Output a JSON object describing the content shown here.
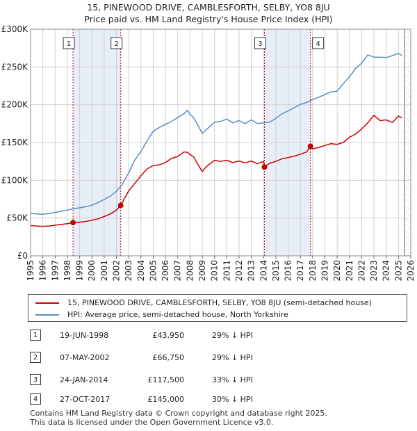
{
  "title": {
    "line1": "15, PINEWOOD DRIVE, CAMBLESFORTH, SELBY, YO8 8JU",
    "line2": "Price paid vs. HM Land Registry's House Price Index (HPI)"
  },
  "colors": {
    "property": "#cc0000",
    "hpi": "#5b8ec9",
    "shade": "#e8eef8",
    "grid": "#d0d0d0",
    "marker_line": "#cc0000"
  },
  "chart_data": {
    "type": "line",
    "title": "Price paid vs. HM Land Registry's House Price Index (HPI)",
    "xlabel": "",
    "ylabel": "",
    "xlim": [
      1995,
      2026
    ],
    "ylim": [
      0,
      300000
    ],
    "y_ticks": [
      {
        "value": 0,
        "label": "£0"
      },
      {
        "value": 50000,
        "label": "£50K"
      },
      {
        "value": 100000,
        "label": "£100K"
      },
      {
        "value": 150000,
        "label": "£150K"
      },
      {
        "value": 200000,
        "label": "£200K"
      },
      {
        "value": 250000,
        "label": "£250K"
      },
      {
        "value": 300000,
        "label": "£300K"
      }
    ],
    "x_ticks": [
      "1995",
      "1996",
      "1997",
      "1998",
      "1999",
      "2000",
      "2001",
      "2002",
      "2003",
      "2004",
      "2005",
      "2006",
      "2007",
      "2008",
      "2009",
      "2010",
      "2011",
      "2012",
      "2013",
      "2014",
      "2015",
      "2016",
      "2017",
      "2018",
      "2019",
      "2020",
      "2021",
      "2022",
      "2023",
      "2024",
      "2025",
      "2026"
    ],
    "shaded_ranges": [
      [
        1998.46,
        2002.35
      ],
      [
        2014.07,
        2017.82
      ]
    ],
    "series": [
      {
        "name": "15, PINEWOOD DRIVE, CAMBLESFORTH, SELBY, YO8 8JU (semi-detached house)",
        "color": "#cc0000",
        "x": [
          1995,
          1995.5,
          1996,
          1996.5,
          1997,
          1997.5,
          1998,
          1998.46,
          1999,
          1999.5,
          2000,
          2000.5,
          2001,
          2001.5,
          2002,
          2002.35,
          2002.7,
          2003,
          2003.5,
          2004,
          2004.5,
          2005,
          2005.5,
          2006,
          2006.5,
          2007,
          2007.5,
          2007.8,
          2008,
          2008.3,
          2008.6,
          2009,
          2009.3,
          2009.6,
          2010,
          2010.5,
          2011,
          2011.5,
          2012,
          2012.5,
          2013,
          2013.5,
          2014,
          2014.07,
          2014.5,
          2015,
          2015.5,
          2016,
          2016.5,
          2017,
          2017.5,
          2017.82,
          2018,
          2018.5,
          2019,
          2019.5,
          2020,
          2020.5,
          2021,
          2021.5,
          2022,
          2022.5,
          2023,
          2023.5,
          2024,
          2024.5,
          2025,
          2025.3
        ],
        "values": [
          40000,
          39500,
          39000,
          39500,
          40500,
          41500,
          42500,
          43950,
          44500,
          45500,
          47000,
          49000,
          52000,
          55500,
          60500,
          66750,
          77000,
          86000,
          96000,
          106000,
          115000,
          119500,
          120500,
          123500,
          129000,
          131500,
          137500,
          137000,
          134000,
          131000,
          122000,
          111500,
          117500,
          121500,
          126500,
          125000,
          126500,
          123500,
          125500,
          123000,
          125500,
          122000,
          125000,
          117500,
          122500,
          125000,
          128500,
          130000,
          132000,
          134500,
          137500,
          145000,
          141500,
          143500,
          146000,
          148500,
          147500,
          150000,
          157000,
          161000,
          168000,
          176000,
          186000,
          179000,
          180000,
          176500,
          185000,
          182500
        ]
      },
      {
        "name": "HPI: Average price, semi-detached house, North Yorkshire",
        "color": "#5b8ec9",
        "x": [
          1995,
          1995.5,
          1996,
          1996.5,
          1997,
          1997.5,
          1998,
          1998.5,
          1999,
          1999.5,
          2000,
          2000.5,
          2001,
          2001.5,
          2002,
          2002.5,
          2003,
          2003.5,
          2004,
          2004.5,
          2005,
          2005.5,
          2006,
          2006.5,
          2007,
          2007.5,
          2007.8,
          2008,
          2008.3,
          2008.6,
          2009,
          2009.3,
          2009.6,
          2010,
          2010.5,
          2011,
          2011.5,
          2012,
          2012.5,
          2013,
          2013.5,
          2014,
          2014.5,
          2015,
          2015.5,
          2016,
          2016.5,
          2017,
          2017.5,
          2018,
          2018.5,
          2019,
          2019.5,
          2020,
          2020.5,
          2021,
          2021.5,
          2022,
          2022.5,
          2023,
          2023.5,
          2024,
          2024.5,
          2025,
          2025.3
        ],
        "values": [
          56000,
          55500,
          55000,
          56000,
          57500,
          59000,
          60500,
          62500,
          63500,
          65000,
          67000,
          70500,
          74500,
          79000,
          85500,
          95000,
          110000,
          127000,
          138000,
          152000,
          165000,
          170000,
          174000,
          178000,
          183000,
          188000,
          193000,
          187000,
          183000,
          174000,
          162000,
          166500,
          171000,
          177000,
          178000,
          181000,
          176000,
          179000,
          175000,
          180000,
          175000,
          176000,
          177000,
          182000,
          188000,
          192000,
          196000,
          200500,
          203000,
          207000,
          210000,
          213500,
          217000,
          218000,
          228000,
          237000,
          248000,
          255000,
          266000,
          263000,
          263000,
          262500,
          265000,
          268000,
          265000
        ]
      }
    ],
    "sales": [
      {
        "n": "1",
        "x": 1998.46,
        "value": 43950
      },
      {
        "n": "2",
        "x": 2002.35,
        "value": 66750
      },
      {
        "n": "3",
        "x": 2014.07,
        "value": 117500
      },
      {
        "n": "4",
        "x": 2017.82,
        "value": 145000
      }
    ],
    "future_line_x": 2025.5
  },
  "legend": {
    "property": "15, PINEWOOD DRIVE, CAMBLESFORTH, SELBY, YO8 8JU (semi-detached house)",
    "hpi": "HPI: Average price, semi-detached house, North Yorkshire"
  },
  "table": [
    {
      "n": "1",
      "date": "19-JUN-1998",
      "price": "£43,950",
      "hpi": "29% ↓ HPI"
    },
    {
      "n": "2",
      "date": "07-MAY-2002",
      "price": "£66,750",
      "hpi": "29% ↓ HPI"
    },
    {
      "n": "3",
      "date": "24-JAN-2014",
      "price": "£117,500",
      "hpi": "33% ↓ HPI"
    },
    {
      "n": "4",
      "date": "27-OCT-2017",
      "price": "£145,000",
      "hpi": "30% ↓ HPI"
    }
  ],
  "footer": {
    "line1": "Contains HM Land Registry data © Crown copyright and database right 2025.",
    "line2": "This data is licensed under the Open Government Licence v3.0."
  }
}
